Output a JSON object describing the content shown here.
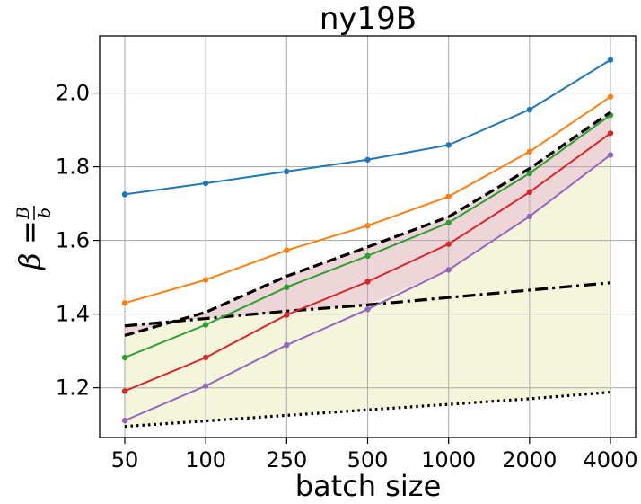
{
  "chart_data": {
    "type": "line",
    "title": "ny19B",
    "xlabel": "batch size",
    "ylabel_symbol": "β",
    "ylabel_equals": "=",
    "ylabel_numerator": "B",
    "ylabel_denominator": "b",
    "categories": [
      "50",
      "100",
      "250",
      "500",
      "1000",
      "2000",
      "4000"
    ],
    "ylim": [
      1.065,
      2.155
    ],
    "yticks": [
      "1.2",
      "1.4",
      "1.6",
      "1.8",
      "2.0"
    ],
    "grid": true,
    "series": [
      {
        "name": "blue",
        "color": "#1f77b4",
        "style": "solid-marker",
        "values": [
          1.725,
          1.755,
          1.787,
          1.819,
          1.859,
          1.955,
          2.09
        ]
      },
      {
        "name": "orange",
        "color": "#ff7f0e",
        "style": "solid-marker",
        "values": [
          1.43,
          1.493,
          1.573,
          1.64,
          1.719,
          1.841,
          1.99
        ]
      },
      {
        "name": "green",
        "color": "#2ca02c",
        "style": "solid-marker",
        "values": [
          1.282,
          1.371,
          1.473,
          1.558,
          1.648,
          1.782,
          1.94
        ]
      },
      {
        "name": "red",
        "color": "#d62728",
        "style": "solid-marker",
        "values": [
          1.191,
          1.282,
          1.398,
          1.488,
          1.59,
          1.731,
          1.891
        ]
      },
      {
        "name": "purple",
        "color": "#9467bd",
        "style": "solid-marker",
        "values": [
          1.111,
          1.205,
          1.316,
          1.413,
          1.52,
          1.665,
          1.832
        ]
      },
      {
        "name": "black-dashed",
        "color": "#000000",
        "style": "dashed",
        "values": [
          1.342,
          1.405,
          1.503,
          1.582,
          1.664,
          1.795,
          1.948
        ]
      },
      {
        "name": "black-dashdot",
        "color": "#000000",
        "style": "dashdot",
        "values": [
          1.368,
          1.388,
          1.408,
          1.425,
          1.445,
          1.465,
          1.485
        ]
      },
      {
        "name": "black-dotted",
        "color": "#000000",
        "style": "dotted",
        "values": [
          1.095,
          1.11,
          1.125,
          1.14,
          1.155,
          1.17,
          1.188
        ]
      }
    ],
    "fill_regions": [
      {
        "name": "yellow-band",
        "color": "#f5f5dc",
        "between": [
          "black-dotted",
          "black-dashed"
        ]
      },
      {
        "name": "pink-band",
        "color": "#eed5d8",
        "between": [
          "max(purple,black-dashdot)",
          "black-dashed"
        ]
      }
    ]
  }
}
